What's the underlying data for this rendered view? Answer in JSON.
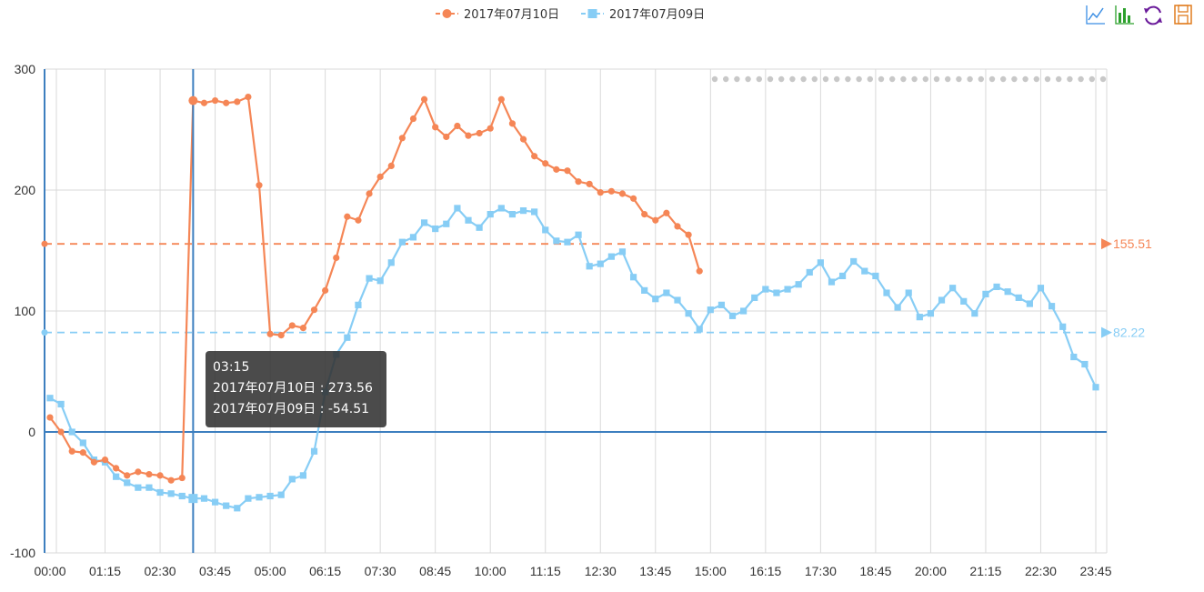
{
  "colors": {
    "series_a": "#f58656",
    "series_b": "#87cdf5",
    "axis": "#3d7fbf",
    "grid": "#d9d9d9",
    "tooltip_bg": "#323232",
    "icon_line": "#3b8ee4",
    "icon_bar": "#2ca02c",
    "icon_restore": "#6a1b9a",
    "icon_save": "#e07b1d"
  },
  "legend": {
    "items": [
      {
        "label": "2017年07月10日",
        "icon": "line-circle-marker"
      },
      {
        "label": "2017年07月09日",
        "icon": "line-square-marker"
      }
    ]
  },
  "toolbox": {
    "icons": [
      "line-chart-icon",
      "bar-chart-icon",
      "restore-icon",
      "save-icon"
    ]
  },
  "tooltip": {
    "time": "03:15",
    "line1": "2017年07月10日 : 273.56",
    "line2": "2017年07月09日 : -54.51"
  },
  "chart_data": {
    "type": "line",
    "title": "",
    "xlabel": "",
    "ylabel": "",
    "ylim": [
      -100,
      300
    ],
    "yticks": [
      -100,
      0,
      100,
      200,
      300
    ],
    "x_tick_labels": [
      "00:00",
      "01:15",
      "02:30",
      "03:45",
      "05:00",
      "06:15",
      "07:30",
      "08:45",
      "10:00",
      "11:15",
      "12:30",
      "13:45",
      "15:00",
      "16:15",
      "17:30",
      "18:45",
      "20:00",
      "21:15",
      "22:30",
      "23:45"
    ],
    "interval_minutes": 15,
    "grid": true,
    "legend_position": "top-center",
    "crosshair_x": "03:15",
    "series": [
      {
        "name": "2017年07月10日",
        "marker": "circle",
        "values": [
          12,
          0,
          -16,
          -17,
          -25,
          -23,
          -30,
          -36,
          -33,
          -35,
          -36,
          -40,
          -38,
          274,
          272,
          274,
          272,
          273,
          277,
          204,
          81,
          80,
          88,
          86,
          101,
          117,
          144,
          178,
          175,
          197,
          211,
          220,
          243,
          259,
          275,
          252,
          244,
          253,
          245,
          247,
          251,
          275,
          255,
          242,
          228,
          222,
          217,
          216,
          207,
          205,
          198,
          199,
          197,
          193,
          180,
          175,
          181,
          170,
          163,
          133
        ],
        "mean_line": 155.51,
        "mean_label": "155.51"
      },
      {
        "name": "2017年07月09日",
        "marker": "square",
        "values": [
          28,
          23,
          0,
          -9,
          -23,
          -25,
          -37,
          -42,
          -46,
          -46,
          -50,
          -51,
          -53,
          -55,
          -55,
          -58,
          -61,
          -63,
          -55,
          -54,
          -53,
          -52,
          -39,
          -36,
          -16,
          33,
          64,
          78,
          105,
          127,
          125,
          140,
          157,
          161,
          173,
          168,
          172,
          185,
          175,
          169,
          180,
          185,
          180,
          183,
          182,
          167,
          158,
          157,
          163,
          137,
          139,
          145,
          149,
          128,
          117,
          110,
          115,
          109,
          98,
          85,
          101,
          105,
          96,
          100,
          111,
          118,
          115,
          118,
          122,
          132,
          140,
          124,
          129,
          141,
          133,
          129,
          115,
          103,
          115,
          95,
          98,
          109,
          119,
          108,
          98,
          114,
          120,
          116,
          111,
          106,
          119,
          104,
          87,
          62,
          56,
          37
        ],
        "mean_line": 82.22,
        "mean_label": "82.22"
      }
    ]
  }
}
